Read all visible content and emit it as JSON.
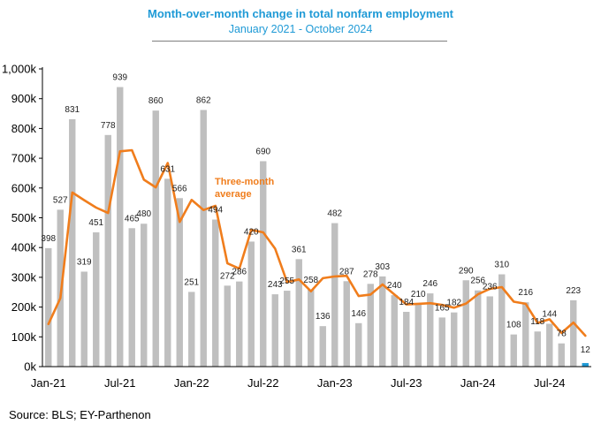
{
  "chart_data": {
    "type": "bar",
    "title": "Month-over-month change in total nonfarm employment",
    "subtitle": "January 2021 - October 2024",
    "source": "Source: BLS; EY-Parthenon",
    "y_ticks": [
      "0k",
      "100k",
      "200k",
      "300k",
      "400k",
      "500k",
      "600k",
      "700k",
      "800k",
      "900k",
      "1,000k"
    ],
    "ylim": [
      0,
      1000
    ],
    "x_tick_labels": [
      {
        "index": 0,
        "label": "Jan-21"
      },
      {
        "index": 6,
        "label": "Jul-21"
      },
      {
        "index": 12,
        "label": "Jan-22"
      },
      {
        "index": 18,
        "label": "Jul-22"
      },
      {
        "index": 24,
        "label": "Jan-23"
      },
      {
        "index": 30,
        "label": "Jul-23"
      },
      {
        "index": 36,
        "label": "Jan-24"
      },
      {
        "index": 42,
        "label": "Jul-24"
      }
    ],
    "categories": [
      "2021-01",
      "2021-02",
      "2021-03",
      "2021-04",
      "2021-05",
      "2021-06",
      "2021-07",
      "2021-08",
      "2021-09",
      "2021-10",
      "2021-11",
      "2021-12",
      "2022-01",
      "2022-02",
      "2022-03",
      "2022-04",
      "2022-05",
      "2022-06",
      "2022-07",
      "2022-08",
      "2022-09",
      "2022-10",
      "2022-11",
      "2022-12",
      "2023-01",
      "2023-02",
      "2023-03",
      "2023-04",
      "2023-05",
      "2023-06",
      "2023-07",
      "2023-08",
      "2023-09",
      "2023-10",
      "2023-11",
      "2023-12",
      "2024-01",
      "2024-02",
      "2024-03",
      "2024-04",
      "2024-05",
      "2024-06",
      "2024-07",
      "2024-08",
      "2024-09",
      "2024-10"
    ],
    "series": [
      {
        "type": "bar",
        "values": [
          398,
          527,
          831,
          319,
          451,
          778,
          939,
          465,
          480,
          860,
          631,
          566,
          251,
          862,
          494,
          272,
          286,
          420,
          690,
          243,
          255,
          361,
          258,
          136,
          482,
          287,
          146,
          278,
          303,
          240,
          184,
          210,
          246,
          165,
          182,
          290,
          256,
          236,
          310,
          108,
          216,
          118,
          144,
          78,
          223,
          12
        ],
        "color": "#bfbfbf",
        "highlight_last_color": "#1f9ad6"
      },
      {
        "name": "Three-month average",
        "type": "line",
        "values": [
          143,
          230,
          585,
          559,
          534,
          516,
          723,
          727,
          628,
          602,
          684,
          486,
          560,
          526,
          540,
          347,
          329,
          459,
          451,
          396,
          284,
          293,
          253,
          297,
          303,
          305,
          237,
          242,
          276,
          242,
          209,
          211,
          213,
          207,
          198,
          212,
          243,
          261,
          267,
          218,
          211,
          147,
          159,
          113,
          148,
          104
        ],
        "color": "#f07d1c"
      }
    ],
    "labels": {
      "line_label_1": "Three-month",
      "line_label_2": "average"
    }
  }
}
